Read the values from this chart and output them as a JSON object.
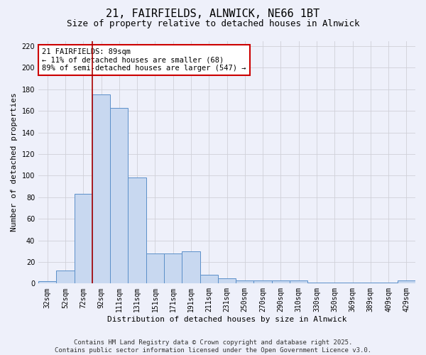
{
  "title_line1": "21, FAIRFIELDS, ALNWICK, NE66 1BT",
  "title_line2": "Size of property relative to detached houses in Alnwick",
  "xlabel": "Distribution of detached houses by size in Alnwick",
  "ylabel": "Number of detached properties",
  "categories": [
    "32sqm",
    "52sqm",
    "72sqm",
    "92sqm",
    "111sqm",
    "131sqm",
    "151sqm",
    "171sqm",
    "191sqm",
    "211sqm",
    "231sqm",
    "250sqm",
    "270sqm",
    "290sqm",
    "310sqm",
    "330sqm",
    "350sqm",
    "369sqm",
    "389sqm",
    "409sqm",
    "429sqm"
  ],
  "values": [
    2,
    12,
    83,
    175,
    163,
    98,
    28,
    28,
    30,
    8,
    5,
    3,
    3,
    3,
    3,
    1,
    1,
    1,
    1,
    1,
    3
  ],
  "bar_color": "#c8d8f0",
  "bar_edge_color": "#5b8fc9",
  "red_line_index": 3,
  "red_line_color": "#aa0000",
  "annotation_text": "21 FAIRFIELDS: 89sqm\n← 11% of detached houses are smaller (68)\n89% of semi-detached houses are larger (547) →",
  "annotation_box_color": "#ffffff",
  "annotation_box_edge": "#cc0000",
  "ylim": [
    0,
    225
  ],
  "yticks": [
    0,
    20,
    40,
    60,
    80,
    100,
    120,
    140,
    160,
    180,
    200,
    220
  ],
  "grid_color": "#d0d0d8",
  "background_color": "#eef0fa",
  "footer_text": "Contains HM Land Registry data © Crown copyright and database right 2025.\nContains public sector information licensed under the Open Government Licence v3.0.",
  "title_fontsize": 11,
  "subtitle_fontsize": 9,
  "axis_label_fontsize": 8,
  "tick_fontsize": 7,
  "annotation_fontsize": 7.5,
  "footer_fontsize": 6.5
}
